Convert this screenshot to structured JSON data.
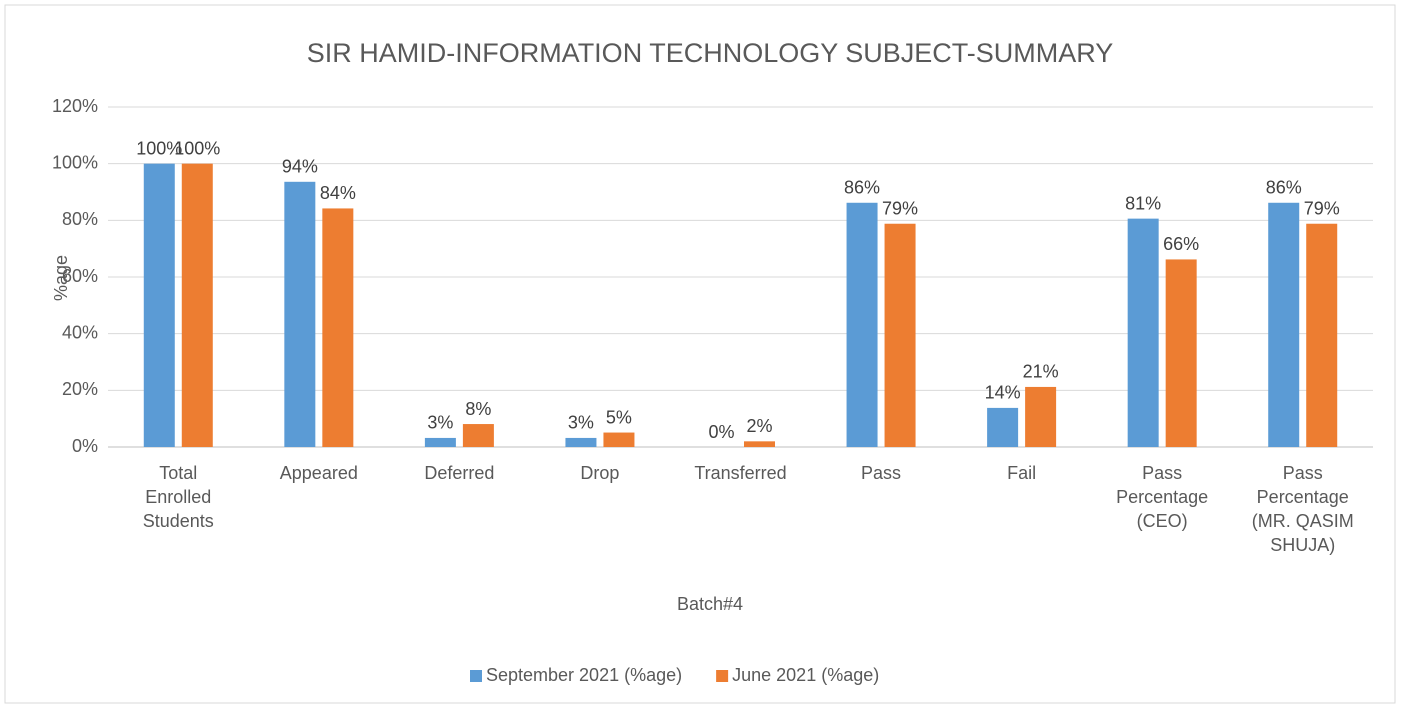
{
  "chart_data": {
    "type": "bar",
    "title": "SIR HAMID-INFORMATION TECHNOLOGY SUBJECT-SUMMARY",
    "xlabel": "Batch#4",
    "ylabel": "%age",
    "categories": [
      "Total Enrolled Students",
      "Appeared",
      "Deferred",
      "Drop",
      "Transferred",
      "Pass",
      "Fail",
      "Pass Percentage (CEO)",
      "Pass Percentage (MR. QASIM SHUJA)"
    ],
    "series": [
      {
        "name": "September 2021 (%age)",
        "color": "#5b9bd5",
        "values": [
          100,
          93.6,
          3.2,
          3.2,
          0,
          86.2,
          13.8,
          80.6,
          86.2
        ],
        "value_labels": [
          "100%",
          "94%",
          "3%",
          "3%",
          "0%",
          "86%",
          "14%",
          "81%",
          "86%"
        ]
      },
      {
        "name": "June 2021 (%age)",
        "color": "#ed7d31",
        "values": [
          100,
          84.2,
          8.1,
          5.1,
          2.0,
          78.8,
          21.2,
          66.2,
          78.8
        ],
        "value_labels": [
          "100%",
          "84%",
          "8%",
          "5%",
          "2%",
          "79%",
          "21%",
          "66%",
          "79%"
        ]
      }
    ],
    "ylim": [
      0,
      120
    ],
    "yticks": [
      {
        "value": 0,
        "label": "0%"
      },
      {
        "value": 20,
        "label": "20%"
      },
      {
        "value": 40,
        "label": "40%"
      },
      {
        "value": 60,
        "label": "60%"
      },
      {
        "value": 80,
        "label": "80%"
      },
      {
        "value": 100,
        "label": "100%"
      },
      {
        "value": 120,
        "label": "120%"
      }
    ],
    "grid": true,
    "legend": "bottom"
  }
}
